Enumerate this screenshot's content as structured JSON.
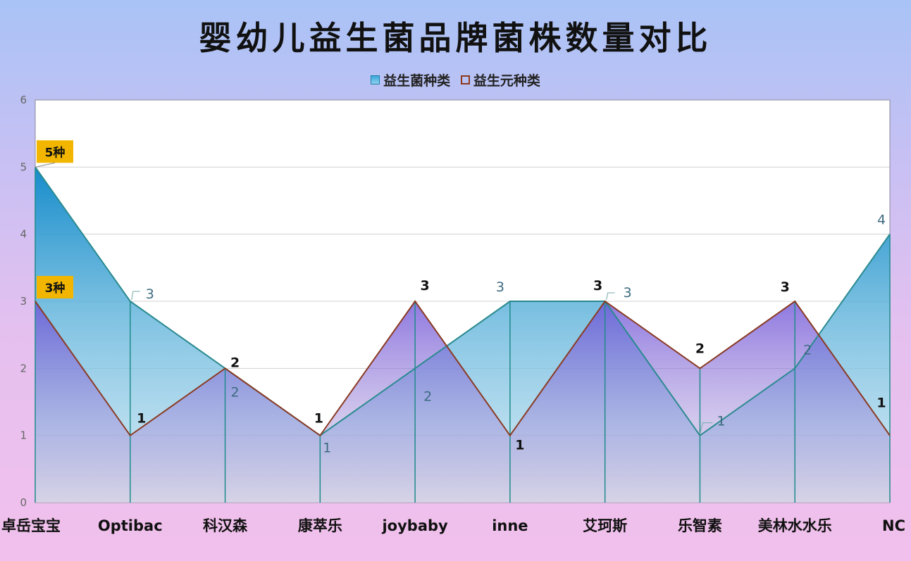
{
  "chart_data": {
    "type": "area",
    "title": "婴幼儿益生菌品牌菌株数量对比",
    "categories": [
      "卓岳宝宝",
      "Optibac",
      "科汉森",
      "康萃乐",
      "joybaby",
      "inne",
      "艾珂斯",
      "乐智素",
      "美林水水乐",
      "NC"
    ],
    "series": [
      {
        "name": "益生菌种类",
        "values": [
          5,
          3,
          2,
          1,
          2,
          3,
          3,
          1,
          2,
          4
        ],
        "color": "#2f93c9"
      },
      {
        "name": "益生元种类",
        "values": [
          3,
          1,
          2,
          1,
          3,
          1,
          3,
          2,
          3,
          1
        ],
        "color": "#8b3a22"
      }
    ],
    "ylim": [
      0,
      6
    ],
    "yticks": [
      "0",
      "1",
      "2",
      "3",
      "4",
      "5",
      "6"
    ],
    "legend_position": "top-center",
    "grid": true,
    "callouts": [
      "5种",
      "3种"
    ]
  }
}
